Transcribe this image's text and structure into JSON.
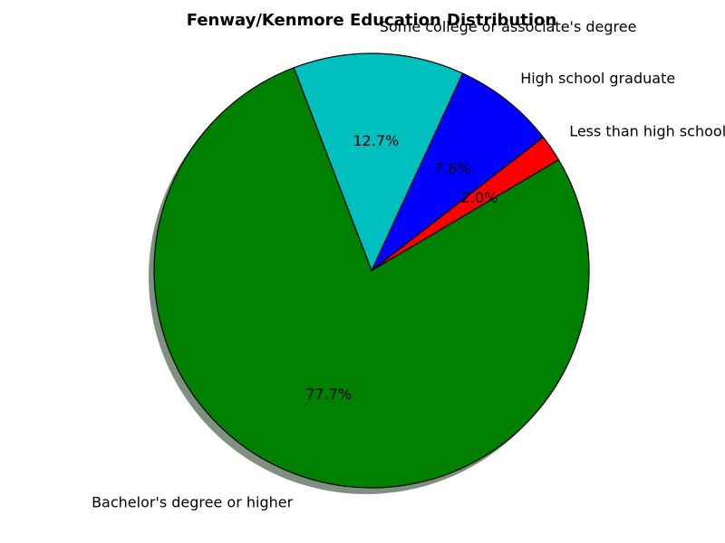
{
  "chart_data": {
    "type": "pie",
    "title": "Fenway/Kenmore Education Distribution",
    "slices": [
      {
        "label": "Less than high school graduate",
        "value": 2.0,
        "pct_label": "2.0%",
        "color": "#ff0000"
      },
      {
        "label": "High school graduate",
        "value": 7.6,
        "pct_label": "7.6%",
        "color": "#0000ff"
      },
      {
        "label": "Some college or associate's degree",
        "value": 12.7,
        "pct_label": "12.7%",
        "color": "#00bfbf"
      },
      {
        "label": "Bachelor's degree or higher",
        "value": 77.7,
        "pct_label": "77.7%",
        "color": "#008000"
      }
    ],
    "shadow": true,
    "legend": "none"
  }
}
